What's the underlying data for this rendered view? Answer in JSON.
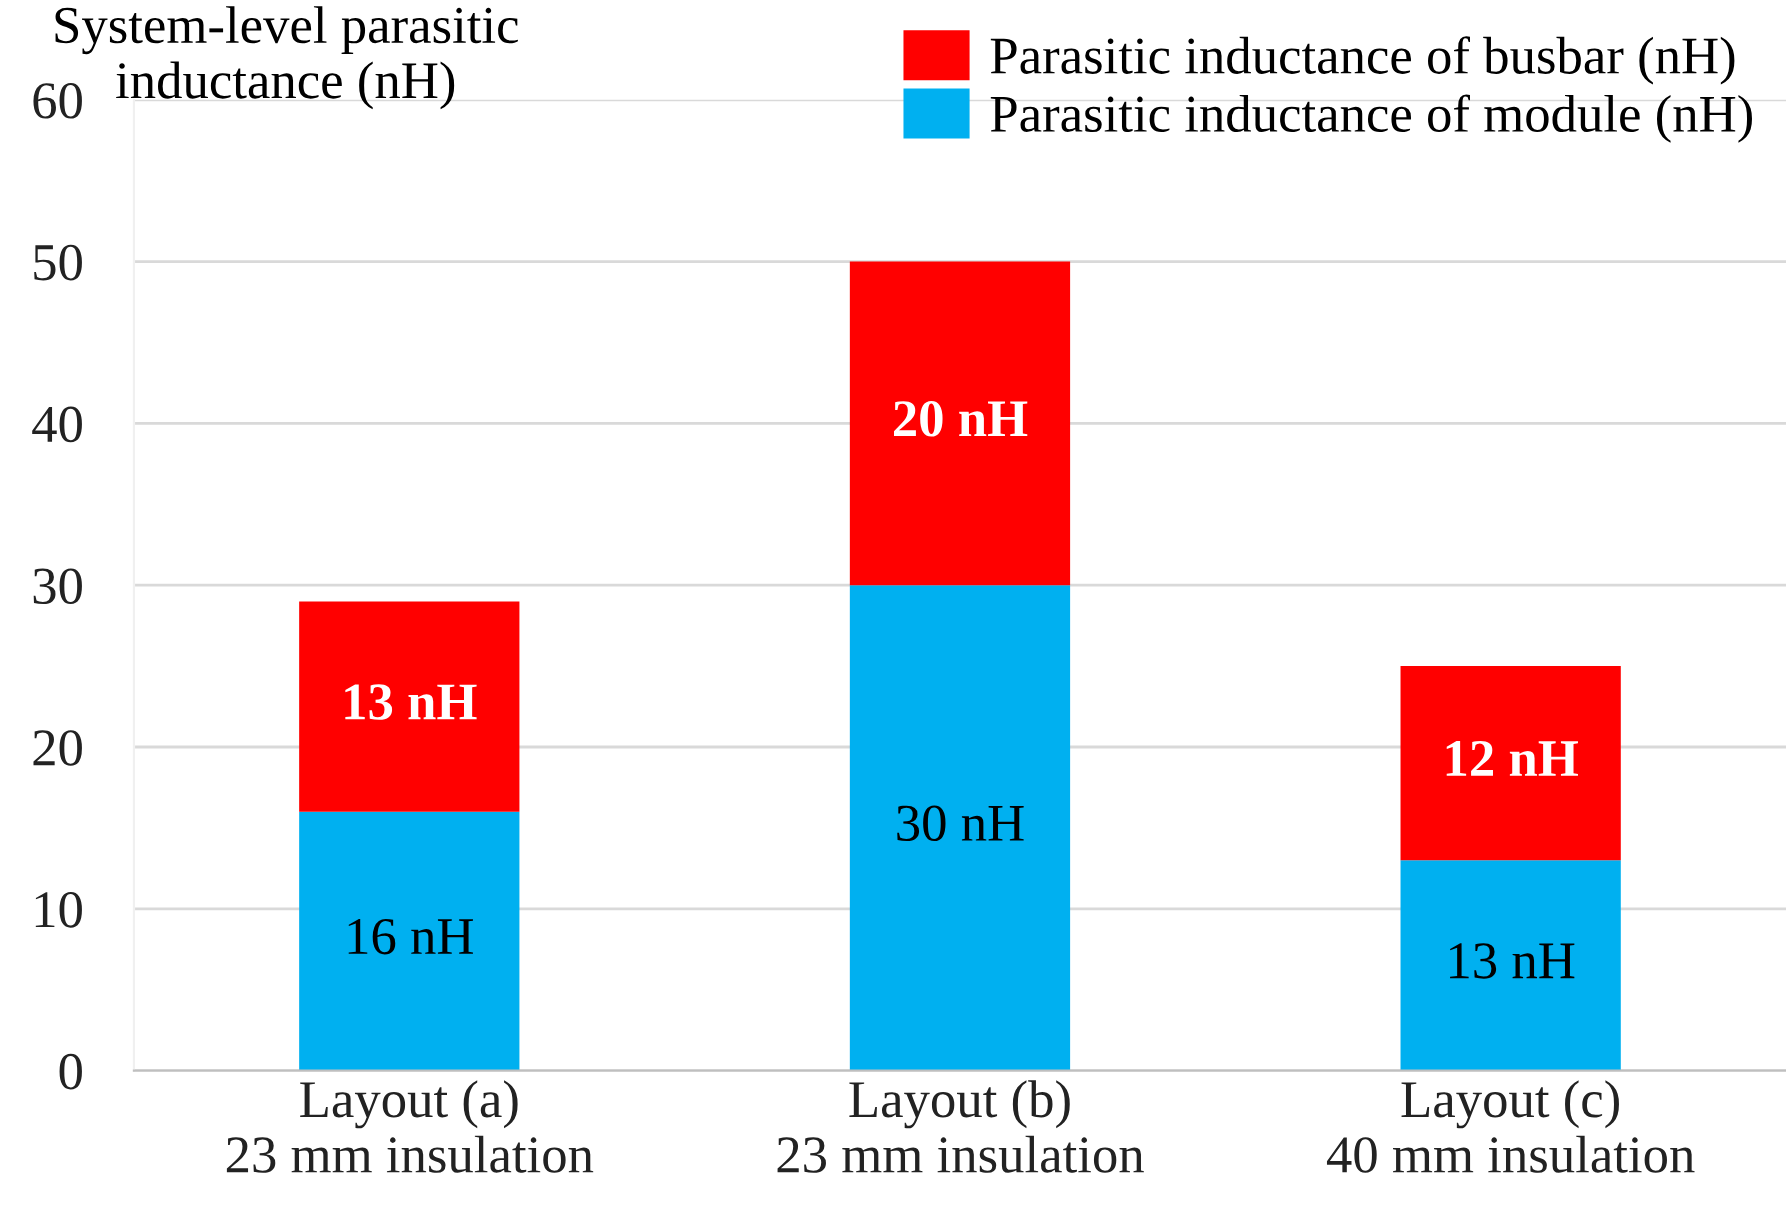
{
  "chart_data": {
    "type": "bar",
    "stacked": true,
    "ylabel": "System-level parasitic\ninductance (nH)",
    "categories": [
      "Layout (a)\n23 mm insulation",
      "Layout (b)\n23 mm insulation",
      "Layout (c)\n40 mm insulation"
    ],
    "series": [
      {
        "name": "Parasitic inductance of module (nH)",
        "color": "#00b0f0",
        "values": [
          16,
          30,
          13
        ],
        "value_labels": [
          "16 nH",
          "30 nH",
          "13 nH"
        ]
      },
      {
        "name": "Parasitic inductance of busbar (nH)",
        "color": "#ff0000",
        "values": [
          13,
          20,
          12
        ],
        "value_labels": [
          "13 nH",
          "20 nH",
          "12 nH"
        ]
      }
    ],
    "ylim": [
      0,
      60
    ],
    "yticks": [
      0,
      10,
      20,
      30,
      40,
      50,
      60
    ],
    "grid": "y",
    "legend": "top right"
  }
}
